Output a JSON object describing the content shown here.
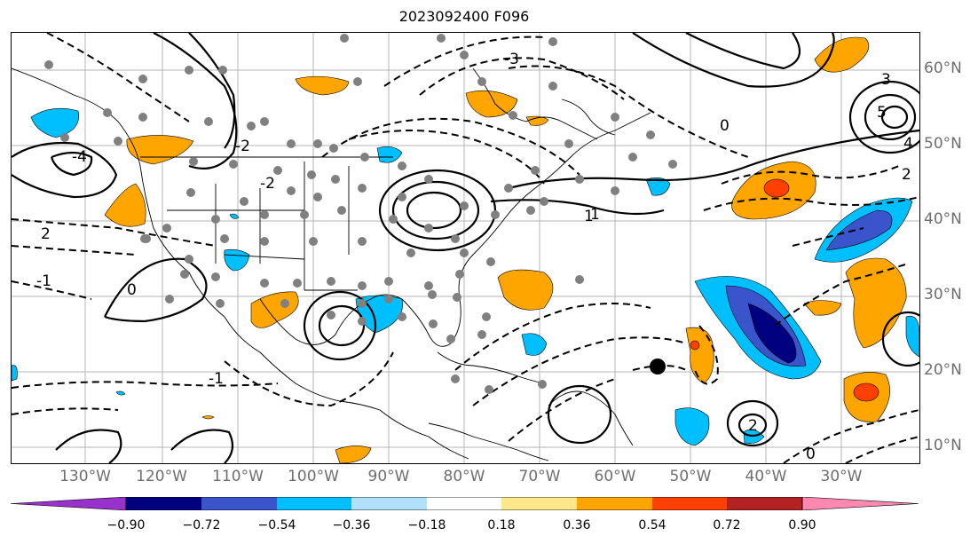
{
  "title": "2023092400 F096",
  "latitude_labels": [
    "60°N",
    "50°N",
    "40°N",
    "30°N",
    "20°N",
    "10°N"
  ],
  "longitude_labels": [
    "130°W",
    "120°W",
    "110°W",
    "100°W",
    "90°W",
    "80°W",
    "70°W",
    "60°W",
    "50°W",
    "40°W",
    "30°W"
  ],
  "contour_labels": [
    "2",
    "-1",
    "0",
    "-2",
    "1",
    "3",
    "-3",
    "5",
    "4",
    "-4",
    "2",
    "-1",
    "0",
    "1",
    "2",
    "-2",
    "0"
  ],
  "colorbar": {
    "ticks": [
      "−0.90",
      "−0.72",
      "−0.54",
      "−0.36",
      "−0.18",
      "0.18",
      "0.36",
      "0.54",
      "0.72",
      "0.90"
    ],
    "colors": [
      "#9932cc",
      "#000080",
      "#3a55cc",
      "#00bfff",
      "#b0e0fa",
      "#ffffff",
      "#ffe88a",
      "#ffa500",
      "#ff4000",
      "#b22222",
      "#ff88b0"
    ]
  },
  "colors": {
    "positive_orange": "#ffa500",
    "positive_red": "#ff4000",
    "negative_light": "#00bfff",
    "negative_mid": "#3a55cc",
    "negative_dark": "#000080",
    "station_dot": "#808080",
    "storm_marker": "#000000"
  }
}
